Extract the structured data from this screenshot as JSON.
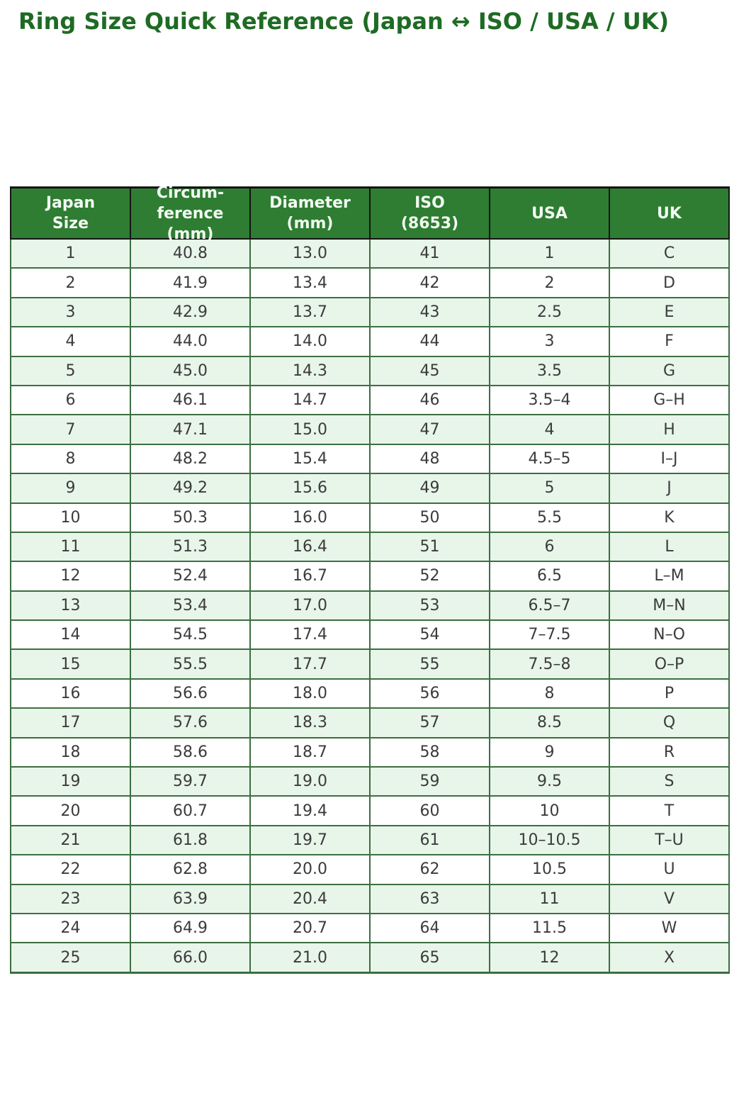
{
  "page": {
    "title": "Ring Size Quick Reference (Japan ↔ ISO / USA / UK)"
  },
  "colors": {
    "title_text": "#1e6b24",
    "header_bg": "#2e7d32",
    "header_text": "#f2faf2",
    "header_border": "#141414",
    "row_stripe_bg": "#e8f5e9",
    "row_plain_bg": "#ffffff",
    "data_border": "#3c6e41",
    "cell_text": "#3b3b3b",
    "page_bg": "#ffffff"
  },
  "chart_data": {
    "type": "table",
    "title": "Ring Size Quick Reference (Japan ↔ ISO / USA / UK)",
    "columns": [
      {
        "key": "japan-size",
        "label": "Japan\nSize"
      },
      {
        "key": "circumference-mm",
        "label": "Circum-\nference\n(mm)"
      },
      {
        "key": "diameter-mm",
        "label": "Diameter\n(mm)"
      },
      {
        "key": "iso-8653",
        "label": "ISO\n(8653)"
      },
      {
        "key": "usa",
        "label": "USA"
      },
      {
        "key": "uk",
        "label": "UK"
      }
    ],
    "rows": [
      [
        "1",
        "40.8",
        "13.0",
        "41",
        "1",
        "C"
      ],
      [
        "2",
        "41.9",
        "13.4",
        "42",
        "2",
        "D"
      ],
      [
        "3",
        "42.9",
        "13.7",
        "43",
        "2.5",
        "E"
      ],
      [
        "4",
        "44.0",
        "14.0",
        "44",
        "3",
        "F"
      ],
      [
        "5",
        "45.0",
        "14.3",
        "45",
        "3.5",
        "G"
      ],
      [
        "6",
        "46.1",
        "14.7",
        "46",
        "3.5–4",
        "G–H"
      ],
      [
        "7",
        "47.1",
        "15.0",
        "47",
        "4",
        "H"
      ],
      [
        "8",
        "48.2",
        "15.4",
        "48",
        "4.5–5",
        "I–J"
      ],
      [
        "9",
        "49.2",
        "15.6",
        "49",
        "5",
        "J"
      ],
      [
        "10",
        "50.3",
        "16.0",
        "50",
        "5.5",
        "K"
      ],
      [
        "11",
        "51.3",
        "16.4",
        "51",
        "6",
        "L"
      ],
      [
        "12",
        "52.4",
        "16.7",
        "52",
        "6.5",
        "L–M"
      ],
      [
        "13",
        "53.4",
        "17.0",
        "53",
        "6.5–7",
        "M–N"
      ],
      [
        "14",
        "54.5",
        "17.4",
        "54",
        "7–7.5",
        "N–O"
      ],
      [
        "15",
        "55.5",
        "17.7",
        "55",
        "7.5–8",
        "O–P"
      ],
      [
        "16",
        "56.6",
        "18.0",
        "56",
        "8",
        "P"
      ],
      [
        "17",
        "57.6",
        "18.3",
        "57",
        "8.5",
        "Q"
      ],
      [
        "18",
        "58.6",
        "18.7",
        "58",
        "9",
        "R"
      ],
      [
        "19",
        "59.7",
        "19.0",
        "59",
        "9.5",
        "S"
      ],
      [
        "20",
        "60.7",
        "19.4",
        "60",
        "10",
        "T"
      ],
      [
        "21",
        "61.8",
        "19.7",
        "61",
        "10–10.5",
        "T–U"
      ],
      [
        "22",
        "62.8",
        "20.0",
        "62",
        "10.5",
        "U"
      ],
      [
        "23",
        "63.9",
        "20.4",
        "63",
        "11",
        "V"
      ],
      [
        "24",
        "64.9",
        "20.7",
        "64",
        "11.5",
        "W"
      ],
      [
        "25",
        "66.0",
        "21.0",
        "65",
        "12",
        "X"
      ]
    ]
  }
}
